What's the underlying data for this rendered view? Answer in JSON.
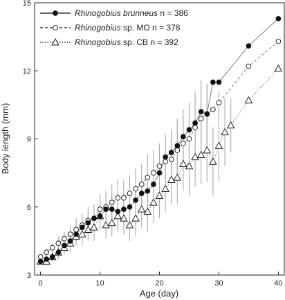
{
  "chart_data": {
    "type": "line",
    "xlabel": "Age (day)",
    "ylabel": "Body length (mm)",
    "xlim": [
      -1,
      41
    ],
    "ylim": [
      3,
      15
    ],
    "xticks": [
      0,
      10,
      20,
      30,
      40
    ],
    "yticks": [
      3,
      6,
      9,
      12,
      15
    ],
    "grid": false,
    "legend_position": "top-left",
    "legend": [
      {
        "italic": "Rhinogobius brunneus",
        "rest": " n = 386"
      },
      {
        "italic": "Rhinogobius",
        "rest": " sp. MO n = 378"
      },
      {
        "italic": "Rhinogobius",
        "rest": " sp. CB n = 392"
      }
    ],
    "series": [
      {
        "marker": "filled-circle",
        "line_style": "solid",
        "color": "#7f7f7f",
        "x": [
          0,
          1,
          2,
          3,
          4,
          5,
          6,
          7,
          8,
          9,
          10,
          11,
          12,
          13,
          14,
          15,
          16,
          17,
          18,
          19,
          20,
          21,
          22,
          23,
          24,
          25,
          26,
          27,
          28,
          29,
          30,
          35,
          40
        ],
        "y": [
          3.6,
          3.7,
          3.8,
          4.0,
          4.3,
          4.5,
          4.8,
          5.1,
          5.3,
          5.5,
          5.6,
          5.9,
          5.9,
          5.8,
          5.9,
          6.0,
          6.3,
          6.6,
          6.7,
          7.0,
          7.5,
          8.2,
          8.4,
          8.7,
          9.1,
          9.4,
          9.7,
          10.2,
          10.1,
          11.5,
          11.5,
          13.1,
          14.3
        ],
        "err": [
          0.1,
          0.15,
          0.2,
          0.2,
          0.3,
          0.3,
          0.4,
          0.4,
          0.5,
          0.6,
          0.6,
          0.6,
          0.7,
          0.7,
          0.6,
          0.6,
          0.6,
          0.7,
          0.8,
          0.9,
          0.9,
          1.0,
          1.0,
          1.2,
          1.2,
          1.2,
          1.4,
          1.4,
          1.3,
          0.0,
          0.0,
          0.0,
          0.0
        ]
      },
      {
        "marker": "open-circle",
        "line_style": "dashed",
        "color": "#7f7f7f",
        "x": [
          0,
          1,
          2,
          3,
          4,
          5,
          6,
          7,
          8,
          9,
          10,
          11,
          12,
          13,
          14,
          15,
          16,
          17,
          18,
          19,
          20,
          21,
          22,
          23,
          24,
          25,
          26,
          27,
          28,
          29,
          30,
          35,
          40
        ],
        "y": [
          3.8,
          4.0,
          4.2,
          4.4,
          4.6,
          4.8,
          5.0,
          5.2,
          5.4,
          5.5,
          5.9,
          6.0,
          6.2,
          6.4,
          6.4,
          6.6,
          6.8,
          7.0,
          7.3,
          7.5,
          7.8,
          8.0,
          8.1,
          8.5,
          8.8,
          9.0,
          9.5,
          9.9,
          10.1,
          10.3,
          10.6,
          12.2,
          13.3
        ],
        "err": [
          0.1,
          0.15,
          0.2,
          0.3,
          0.3,
          0.4,
          0.5,
          0.5,
          0.6,
          0.6,
          0.7,
          0.7,
          0.8,
          0.8,
          0.8,
          0.8,
          0.9,
          0.9,
          1.0,
          1.0,
          1.0,
          1.1,
          1.1,
          1.1,
          1.2,
          1.2,
          1.4,
          1.4,
          1.3,
          0.0,
          0.5,
          0.0,
          0.0
        ]
      },
      {
        "marker": "open-triangle",
        "line_style": "dotted",
        "color": "#7f7f7f",
        "x": [
          0,
          1,
          2,
          3,
          4,
          5,
          6,
          7,
          8,
          9,
          10,
          11,
          12,
          13,
          14,
          15,
          16,
          17,
          18,
          19,
          20,
          21,
          22,
          23,
          24,
          25,
          26,
          27,
          28,
          29,
          30,
          31,
          32,
          35,
          40
        ],
        "y": [
          3.6,
          3.6,
          3.8,
          4.0,
          4.2,
          4.4,
          4.7,
          4.8,
          5.0,
          5.1,
          5.6,
          5.2,
          5.3,
          5.6,
          5.5,
          5.2,
          5.5,
          5.9,
          5.8,
          6.2,
          6.5,
          6.8,
          7.2,
          7.3,
          7.9,
          7.8,
          8.2,
          8.3,
          8.5,
          8.0,
          8.7,
          9.3,
          9.6,
          10.7,
          12.1
        ],
        "err": [
          0.1,
          0.15,
          0.2,
          0.3,
          0.3,
          0.4,
          0.4,
          0.5,
          0.5,
          0.6,
          0.6,
          0.6,
          0.6,
          0.7,
          0.7,
          0.7,
          0.8,
          0.8,
          0.9,
          0.9,
          1.0,
          1.0,
          1.1,
          1.2,
          1.2,
          1.3,
          1.3,
          1.3,
          1.4,
          1.5,
          1.6,
          1.5,
          1.2,
          0.0,
          0.0
        ]
      }
    ]
  }
}
